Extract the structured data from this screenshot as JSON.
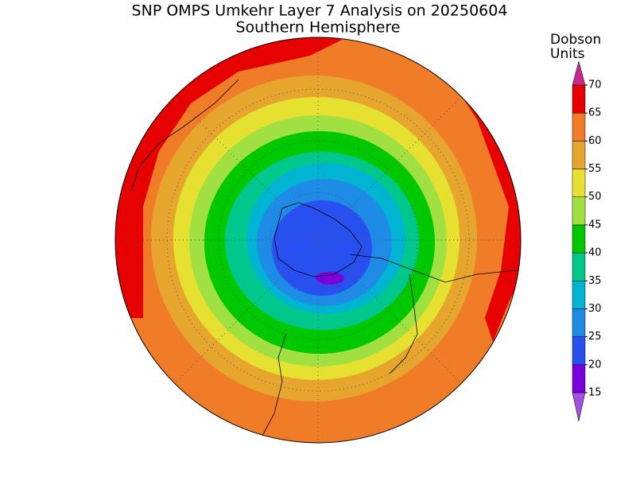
{
  "title": "SNP OMPS Umkehr Layer 7 Analysis on 20250604",
  "subtitle": "Southern Hemisphere",
  "colorbar": {
    "label_lines": [
      "Dobson",
      "Units"
    ],
    "ticks": [
      15,
      20,
      25,
      30,
      35,
      40,
      45,
      50,
      55,
      60,
      65,
      70
    ],
    "colors": [
      "#7a00dc",
      "#2850f0",
      "#1e8ce6",
      "#00b4d2",
      "#00c88c",
      "#00c800",
      "#a0e040",
      "#e6e030",
      "#e6a62e",
      "#f07c28",
      "#e60000"
    ],
    "under_color": "#a050e0",
    "over_color": "#c8288c"
  }
}
